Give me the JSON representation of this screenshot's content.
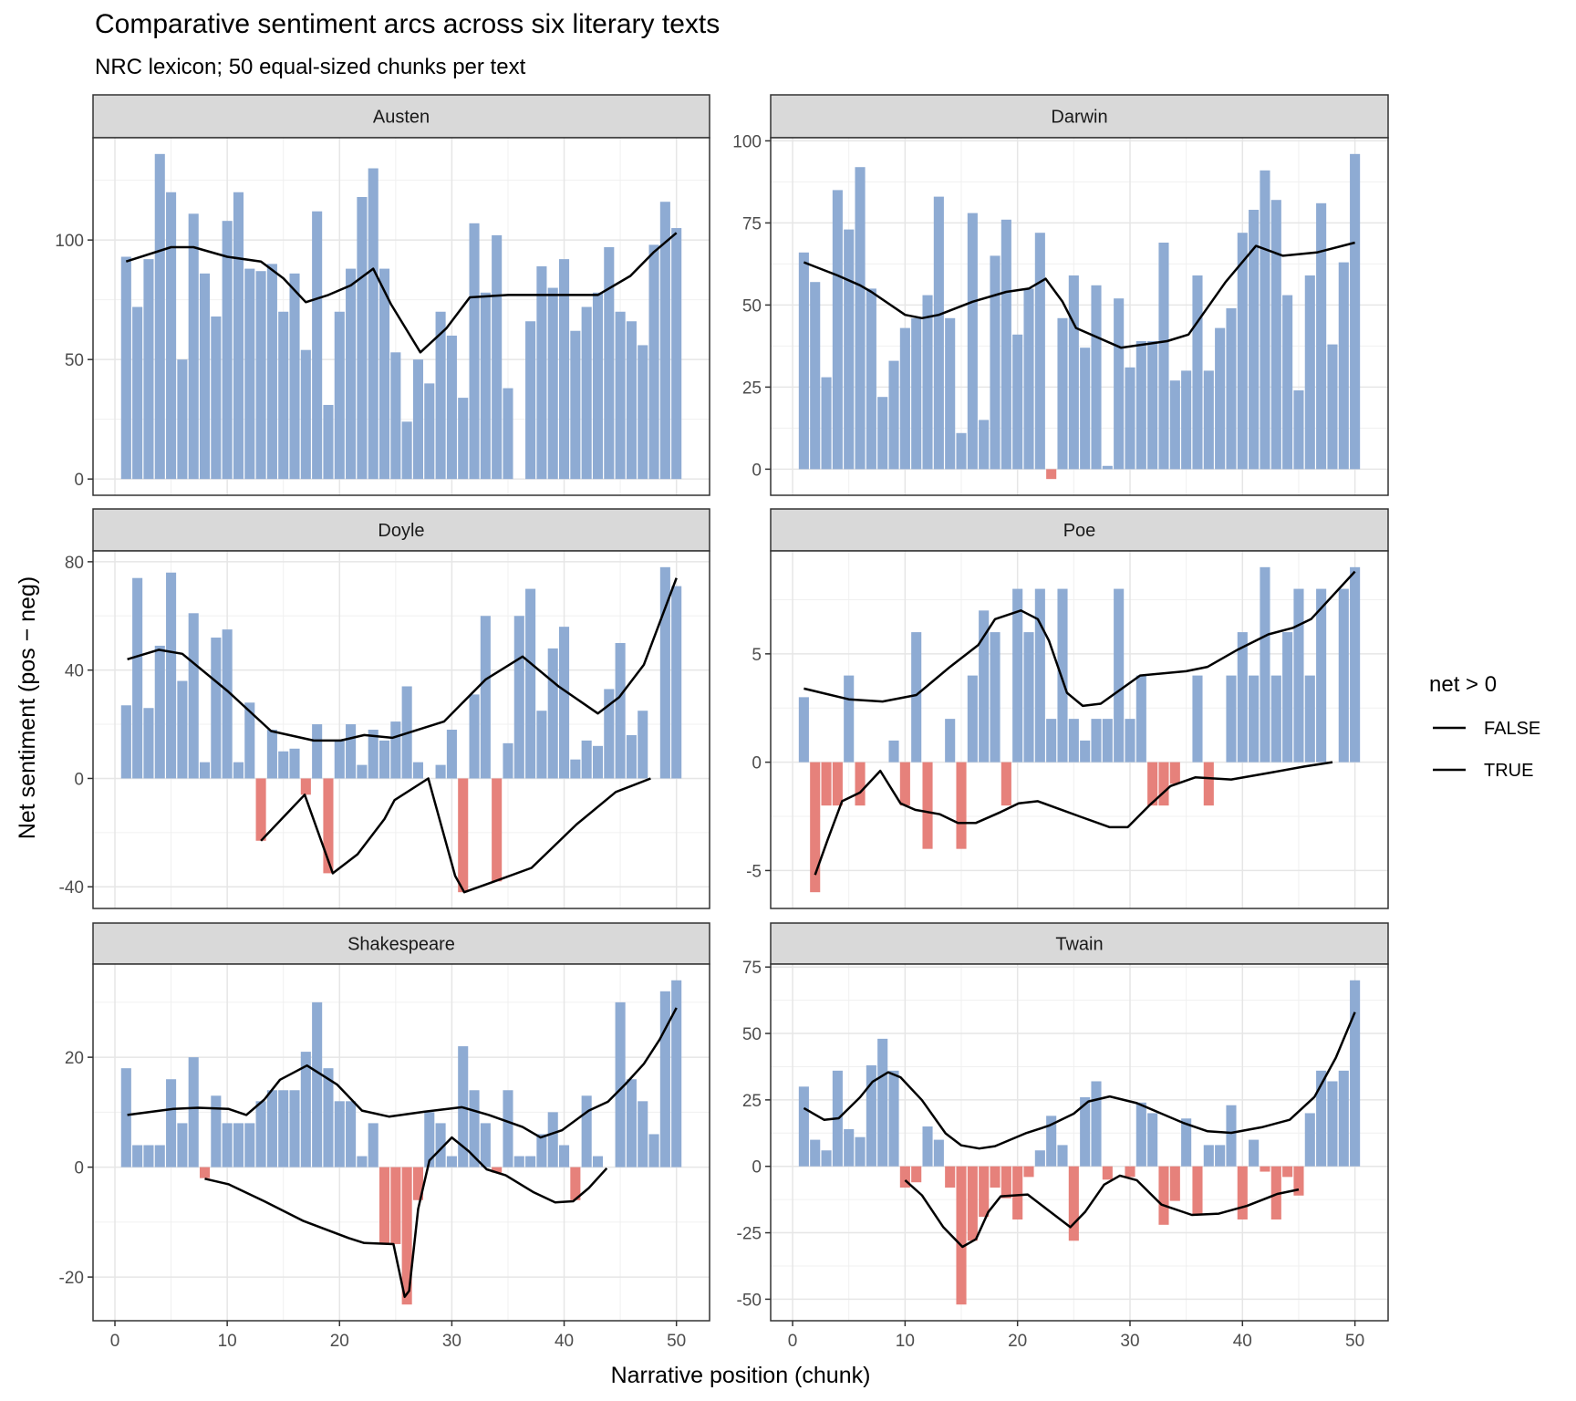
{
  "chart_data": {
    "type": "bar",
    "title": "Comparative sentiment arcs across six literary texts",
    "subtitle": "NRC lexicon; 50 equal-sized chunks per text",
    "xlabel": "Narrative position (chunk)",
    "ylabel": "Net sentiment (pos − neg)",
    "x_ticks": [
      0,
      10,
      20,
      30,
      40,
      50
    ],
    "xlim": [
      -1.95,
      52.95
    ],
    "grid": true,
    "legend": {
      "title": "net > 0",
      "position": "right",
      "entries": [
        "FALSE",
        "TRUE"
      ]
    },
    "colors": {
      "positive": "#8eabd3",
      "negative": "#e6817b",
      "smooth": "#000000",
      "strip": "#d9d9d9"
    },
    "panels": [
      {
        "name": "Austen",
        "ylim": [
          -6.8,
          142.8
        ],
        "y_ticks": [
          0,
          50,
          100
        ],
        "values": [
          93,
          72,
          92,
          136,
          120,
          50,
          111,
          86,
          68,
          108,
          120,
          88,
          87,
          90,
          70,
          86,
          54,
          112,
          31,
          70,
          88,
          118,
          130,
          88,
          53,
          24,
          50,
          40,
          70,
          60,
          34,
          107,
          78,
          102,
          38,
          0,
          66,
          89,
          80,
          92,
          62,
          72,
          78,
          97,
          70,
          66,
          56,
          98,
          116,
          105
        ],
        "smooth_true": [
          [
            1,
            91
          ],
          [
            5,
            97
          ],
          [
            7,
            97
          ],
          [
            10,
            93
          ],
          [
            13,
            91
          ],
          [
            15,
            84
          ],
          [
            17,
            74
          ],
          [
            19,
            77
          ],
          [
            21,
            81
          ],
          [
            23,
            88
          ],
          [
            24.6,
            73
          ],
          [
            27.2,
            53
          ],
          [
            29.5,
            63
          ],
          [
            31.6,
            76
          ],
          [
            35,
            77
          ],
          [
            40,
            77
          ],
          [
            43,
            77
          ],
          [
            45.9,
            85
          ],
          [
            48,
            95
          ],
          [
            50,
            103
          ]
        ],
        "smooth_false": []
      },
      {
        "name": "Darwin",
        "ylim": [
          -7.95,
          100.95
        ],
        "y_ticks": [
          0,
          25,
          50,
          75,
          100
        ],
        "values": [
          66,
          57,
          28,
          85,
          73,
          92,
          55,
          22,
          33,
          43,
          46,
          53,
          83,
          46,
          11,
          78,
          15,
          65,
          76,
          41,
          55,
          72,
          -3,
          46,
          59,
          37,
          56,
          1,
          52,
          31,
          39,
          39,
          69,
          27,
          30,
          59,
          30,
          43,
          49,
          72,
          79,
          91,
          82,
          53,
          24,
          59,
          81,
          38,
          63,
          96
        ],
        "smooth_true": [
          [
            1,
            63
          ],
          [
            4,
            59
          ],
          [
            6,
            56
          ],
          [
            7,
            54
          ],
          [
            10,
            47
          ],
          [
            11.5,
            46
          ],
          [
            13,
            47
          ],
          [
            16,
            51
          ],
          [
            19,
            54
          ],
          [
            21,
            55
          ],
          [
            22.5,
            58
          ],
          [
            24,
            51
          ],
          [
            25.2,
            43
          ],
          [
            29.2,
            37
          ],
          [
            33.3,
            39
          ],
          [
            35.2,
            41
          ],
          [
            38.5,
            57
          ],
          [
            41.2,
            68
          ],
          [
            43.6,
            65
          ],
          [
            46.6,
            66
          ],
          [
            50,
            69
          ]
        ],
        "smooth_false": []
      },
      {
        "name": "Doyle",
        "ylim": [
          -48,
          84
        ],
        "y_ticks": [
          -40,
          0,
          40,
          80
        ],
        "values": [
          27,
          74,
          26,
          49,
          76,
          36,
          61,
          6,
          52,
          55,
          6,
          28,
          -23,
          18,
          10,
          11,
          -6,
          20,
          -35,
          14,
          20,
          5,
          18,
          14,
          21,
          34,
          6,
          0,
          5,
          18,
          -42,
          31,
          60,
          -38,
          13,
          60,
          70,
          25,
          48,
          56,
          7,
          14,
          12,
          33,
          50,
          16,
          25,
          0,
          78,
          71
        ],
        "smooth_true": [
          [
            1.1,
            44
          ],
          [
            3.9,
            47.5
          ],
          [
            6,
            46
          ],
          [
            10.1,
            32
          ],
          [
            13.9,
            17.5
          ],
          [
            17.7,
            14
          ],
          [
            20.1,
            14
          ],
          [
            22.2,
            16
          ],
          [
            24.7,
            15
          ],
          [
            29.3,
            21
          ],
          [
            33,
            36.5
          ],
          [
            36.3,
            45
          ],
          [
            39.5,
            34
          ],
          [
            43,
            24
          ],
          [
            44.9,
            30
          ],
          [
            47.1,
            42
          ],
          [
            50,
            74
          ]
        ],
        "smooth_false": [
          [
            13,
            -23
          ],
          [
            16.9,
            -6
          ],
          [
            19.4,
            -35
          ],
          [
            21.6,
            -28
          ],
          [
            24,
            -15
          ],
          [
            24.9,
            -8
          ],
          [
            27.9,
            0
          ],
          [
            30.3,
            -36
          ],
          [
            31.1,
            -42
          ],
          [
            33.8,
            -38
          ],
          [
            37.1,
            -33
          ],
          [
            41.1,
            -17
          ],
          [
            44.6,
            -5
          ],
          [
            47.7,
            0
          ]
        ]
      },
      {
        "name": "Poe",
        "ylim": [
          -6.75,
          9.75
        ],
        "y_ticks": [
          -5,
          0,
          5
        ],
        "values": [
          3,
          -6,
          -2,
          -2,
          4,
          -2,
          0,
          0,
          1,
          -2,
          6,
          -4,
          0,
          2,
          -4,
          4,
          7,
          6,
          -2,
          8,
          6,
          8,
          2,
          8,
          2,
          1,
          2,
          2,
          8,
          2,
          4,
          -2,
          -2,
          -1,
          0,
          4,
          -2,
          0,
          4,
          6,
          4,
          9,
          4,
          6,
          8,
          4,
          8,
          0,
          8,
          9
        ],
        "smooth_true": [
          [
            1,
            3.4
          ],
          [
            5,
            2.9
          ],
          [
            8,
            2.8
          ],
          [
            11,
            3.1
          ],
          [
            14,
            4.4
          ],
          [
            16.5,
            5.4
          ],
          [
            18,
            6.6
          ],
          [
            20.3,
            7
          ],
          [
            21.8,
            6.6
          ],
          [
            22.8,
            5.6
          ],
          [
            24.4,
            3.2
          ],
          [
            25.8,
            2.6
          ],
          [
            27.4,
            2.7
          ],
          [
            30.9,
            4
          ],
          [
            35,
            4.2
          ],
          [
            36.9,
            4.4
          ],
          [
            39.6,
            5.2
          ],
          [
            42.3,
            5.9
          ],
          [
            44.5,
            6.2
          ],
          [
            46.1,
            6.6
          ],
          [
            50,
            8.8
          ]
        ],
        "smooth_false": [
          [
            2,
            -5.2
          ],
          [
            3.1,
            -3.6
          ],
          [
            4.4,
            -1.8
          ],
          [
            6,
            -1.4
          ],
          [
            7.8,
            -0.4
          ],
          [
            9.6,
            -1.9
          ],
          [
            10.9,
            -2.2
          ],
          [
            13.1,
            -2.4
          ],
          [
            14.7,
            -2.8
          ],
          [
            16.3,
            -2.8
          ],
          [
            18.5,
            -2.3
          ],
          [
            20.1,
            -1.9
          ],
          [
            21.8,
            -1.8
          ],
          [
            25.5,
            -2.5
          ],
          [
            28.2,
            -3
          ],
          [
            29.8,
            -3
          ],
          [
            31.7,
            -2
          ],
          [
            33.6,
            -1.1
          ],
          [
            35.8,
            -0.7
          ],
          [
            39,
            -0.8
          ],
          [
            42.3,
            -0.5
          ],
          [
            45.5,
            -0.2
          ],
          [
            48,
            0
          ]
        ]
      },
      {
        "name": "Shakespeare",
        "ylim": [
          -27.95,
          36.95
        ],
        "y_ticks": [
          -20,
          0,
          20
        ],
        "values": [
          18,
          4,
          4,
          4,
          16,
          8,
          20,
          -2,
          13,
          8,
          8,
          8,
          12,
          14,
          14,
          14,
          21,
          30,
          18,
          12,
          12,
          2,
          8,
          -14,
          -14,
          -25,
          -6,
          10,
          8,
          2,
          22,
          14,
          8,
          -1,
          14,
          2,
          2,
          6,
          10,
          4,
          -6,
          13,
          2,
          0,
          30,
          16,
          12,
          6,
          32,
          34
        ],
        "smooth_true": [
          [
            1.1,
            9.5
          ],
          [
            5.2,
            10.6
          ],
          [
            7.4,
            10.8
          ],
          [
            10.1,
            10.6
          ],
          [
            11.7,
            9.5
          ],
          [
            13.3,
            12.3
          ],
          [
            14.7,
            15.9
          ],
          [
            17.1,
            18.5
          ],
          [
            19.8,
            15
          ],
          [
            22,
            10.3
          ],
          [
            24.4,
            9.2
          ],
          [
            27.6,
            10.1
          ],
          [
            30.9,
            10.9
          ],
          [
            33.3,
            9.5
          ],
          [
            36.3,
            7.3
          ],
          [
            37.9,
            5.4
          ],
          [
            39.8,
            6.7
          ],
          [
            42.2,
            10.3
          ],
          [
            43.9,
            11.9
          ],
          [
            45.5,
            15.2
          ],
          [
            47.1,
            18.8
          ],
          [
            48.5,
            23.2
          ],
          [
            50,
            29
          ]
        ],
        "smooth_false": [
          [
            8,
            -2.1
          ],
          [
            10.1,
            -3.1
          ],
          [
            13.3,
            -6.2
          ],
          [
            16.8,
            -9.8
          ],
          [
            20.8,
            -12.9
          ],
          [
            22.2,
            -13.8
          ],
          [
            24.8,
            -14
          ],
          [
            25.8,
            -23.6
          ],
          [
            26.2,
            -22.5
          ],
          [
            27,
            -7.6
          ],
          [
            28,
            1.2
          ],
          [
            30,
            5.4
          ],
          [
            31.5,
            2.9
          ],
          [
            33.1,
            -0.4
          ],
          [
            34.8,
            -1.5
          ],
          [
            37.3,
            -4.6
          ],
          [
            39.2,
            -6.4
          ],
          [
            40.8,
            -6.2
          ],
          [
            42.2,
            -3.8
          ],
          [
            43.8,
            -0.2
          ]
        ]
      },
      {
        "name": "Twain",
        "ylim": [
          -58.1,
          76.1
        ],
        "y_ticks": [
          -50,
          -25,
          0,
          25,
          50,
          75
        ],
        "values": [
          30,
          10,
          6,
          36,
          14,
          11,
          38,
          48,
          36,
          -8,
          -6,
          15,
          10,
          -8,
          -52,
          -28,
          -19,
          -8,
          -12,
          -20,
          -4,
          6,
          19,
          8,
          -28,
          26,
          32,
          -5,
          0,
          -4,
          24,
          20,
          -22,
          -13,
          18,
          -18,
          8,
          8,
          23,
          -20,
          10,
          -2,
          -20,
          -4,
          -11,
          20,
          36,
          32,
          36,
          70
        ],
        "smooth_true": [
          [
            1,
            21.9
          ],
          [
            2.8,
            17.5
          ],
          [
            4.1,
            18.1
          ],
          [
            6,
            26
          ],
          [
            7.1,
            31.8
          ],
          [
            8.5,
            35.4
          ],
          [
            9.6,
            33.5
          ],
          [
            11.5,
            24.9
          ],
          [
            13.6,
            12.4
          ],
          [
            15,
            7.9
          ],
          [
            16.6,
            6.7
          ],
          [
            18,
            7.6
          ],
          [
            20.7,
            12.4
          ],
          [
            22.8,
            15.3
          ],
          [
            25,
            19.8
          ],
          [
            26.3,
            24.4
          ],
          [
            28.2,
            26.3
          ],
          [
            30.6,
            23.8
          ],
          [
            34.7,
            16.4
          ],
          [
            36.9,
            13.2
          ],
          [
            39,
            12.6
          ],
          [
            41.7,
            14.7
          ],
          [
            44.2,
            17.5
          ],
          [
            46.4,
            26.1
          ],
          [
            48.3,
            40.9
          ],
          [
            50,
            58
          ]
        ],
        "smooth_false": [
          [
            10,
            -5.2
          ],
          [
            11.5,
            -10.9
          ],
          [
            13.4,
            -22.9
          ],
          [
            15.1,
            -30.3
          ],
          [
            16.3,
            -27.4
          ],
          [
            17.4,
            -17.2
          ],
          [
            18.5,
            -11.3
          ],
          [
            20.9,
            -10.6
          ],
          [
            22.6,
            -16.1
          ],
          [
            24.7,
            -22.9
          ],
          [
            26,
            -17.2
          ],
          [
            27.7,
            -6.9
          ],
          [
            29.1,
            -3.5
          ],
          [
            30.6,
            -5.2
          ],
          [
            32.8,
            -14.4
          ],
          [
            35.5,
            -18.3
          ],
          [
            37.9,
            -17.8
          ],
          [
            40.4,
            -14.9
          ],
          [
            43.1,
            -10.4
          ],
          [
            45,
            -8.7
          ]
        ]
      }
    ]
  }
}
